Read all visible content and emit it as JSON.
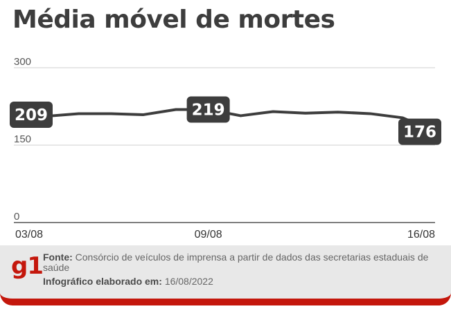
{
  "title": "Média móvel de mortes",
  "chart_data": {
    "type": "line",
    "x": [
      "03/08",
      "04/08",
      "05/08",
      "06/08",
      "07/08",
      "08/08",
      "09/08",
      "10/08",
      "11/08",
      "12/08",
      "13/08",
      "14/08",
      "15/08",
      "16/08"
    ],
    "values": [
      209,
      206,
      211,
      211,
      209,
      219,
      219,
      207,
      215,
      212,
      214,
      211,
      203,
      176
    ],
    "y_ticks": [
      0,
      150,
      300
    ],
    "x_tick_labels": [
      "03/08",
      "09/08",
      "16/08"
    ],
    "ylim": [
      0,
      300
    ],
    "grid": true,
    "callouts": [
      {
        "index": 0,
        "text": "209"
      },
      {
        "index": 6,
        "text": "219"
      },
      {
        "index": 13,
        "text": "176"
      }
    ],
    "color": "#3d3d3d"
  },
  "footer": {
    "logo": "g1",
    "source_label": "Fonte:",
    "source_text": "Consórcio de veículos de imprensa a partir de dados das secretarias estaduais de saúde",
    "date_label": "Infográfico elaborado em:",
    "date_value": "16/08/2022",
    "accent_color": "#c4170c"
  }
}
